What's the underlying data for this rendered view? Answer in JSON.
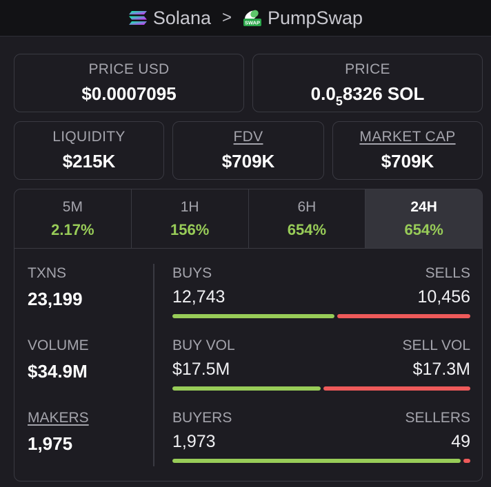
{
  "breadcrumb": {
    "chain": "Solana",
    "separator": ">",
    "dex": "PumpSwap",
    "dex_icon_text": "SWAP"
  },
  "price_usd": {
    "label": "PRICE USD",
    "value": "$0.0007095"
  },
  "price_native": {
    "label": "PRICE",
    "prefix": "0.0",
    "subscript": "5",
    "suffix": "8326 SOL"
  },
  "liquidity": {
    "label": "LIQUIDITY",
    "value": "$215K"
  },
  "fdv": {
    "label": "FDV",
    "value": "$709K"
  },
  "market_cap": {
    "label": "MARKET CAP",
    "value": "$709K"
  },
  "timeframes": [
    {
      "label": "5M",
      "value": "2.17%"
    },
    {
      "label": "1H",
      "value": "156%"
    },
    {
      "label": "6H",
      "value": "654%"
    },
    {
      "label": "24H",
      "value": "654%",
      "active": true
    }
  ],
  "stats": {
    "txns": {
      "label": "TXNS",
      "value": "23,199"
    },
    "volume": {
      "label": "VOLUME",
      "value": "$34.9M"
    },
    "makers": {
      "label": "MAKERS",
      "value": "1,975"
    }
  },
  "splits": {
    "buys_sells": {
      "left_label": "BUYS",
      "right_label": "SELLS",
      "left_value": "12,743",
      "right_value": "10,456",
      "left_fraction": 0.549
    },
    "volumes": {
      "left_label": "BUY VOL",
      "right_label": "SELL VOL",
      "left_value": "$17.5M",
      "right_value": "$17.3M",
      "left_fraction": 0.503
    },
    "buyers_sellers": {
      "left_label": "BUYERS",
      "right_label": "SELLERS",
      "left_value": "1,973",
      "right_value": "49",
      "left_fraction": 0.976
    }
  },
  "colors": {
    "positive": "#98cc58",
    "negative": "#ee5a5a",
    "border": "#3a3a42",
    "background": "#1d1c22"
  },
  "icons": {
    "chain": "solana-logo-icon",
    "dex": "pumpswap-logo-icon",
    "separator": "chevron-right-icon"
  }
}
